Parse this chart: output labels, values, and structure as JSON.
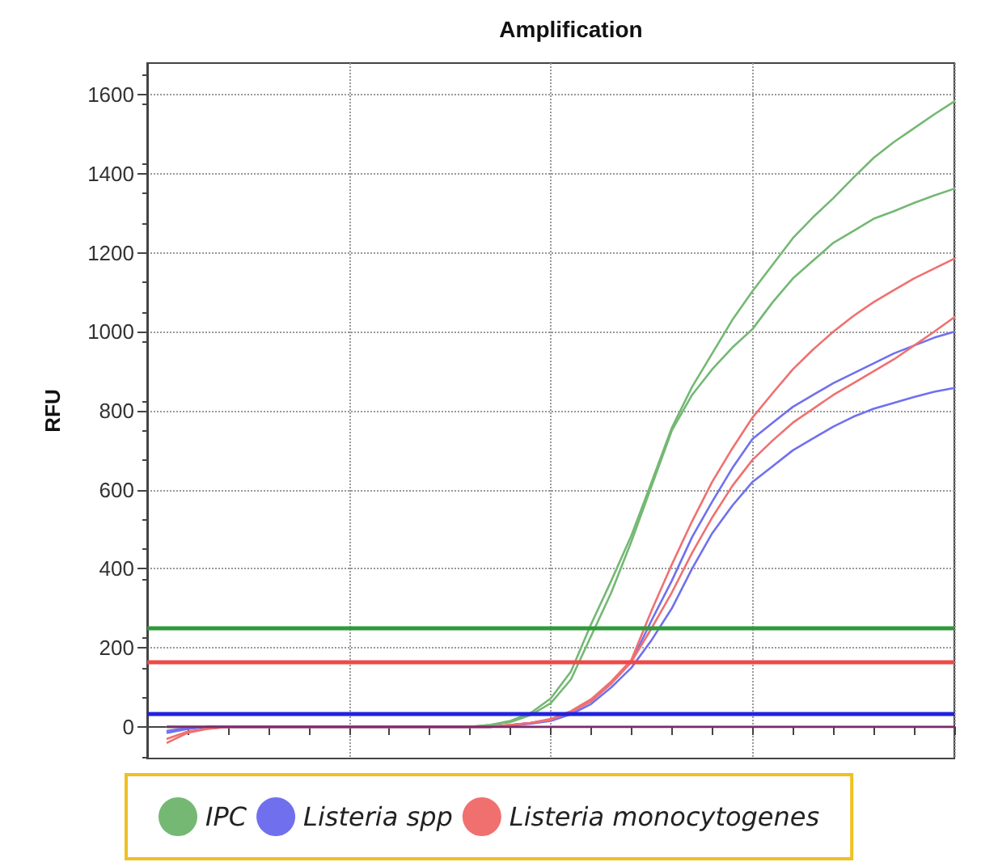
{
  "chart_data": {
    "type": "line",
    "title": "Amplification",
    "ylabel": "RFU",
    "categories": [
      null,
      null,
      null,
      null,
      null,
      null,
      null,
      null,
      null,
      null,
      null,
      null,
      null,
      null,
      null,
      null,
      null,
      null,
      null,
      null,
      null,
      null,
      null,
      null,
      null,
      null,
      null,
      null,
      null,
      null,
      null,
      null,
      null,
      null,
      null,
      null,
      null,
      null,
      null,
      null,
      null
    ],
    "series": [
      {
        "name": "IPC",
        "color": "#74b874",
        "values": [
          null,
          0,
          0,
          0,
          0,
          0,
          0,
          0,
          0,
          0,
          0,
          0,
          0,
          0,
          0,
          0,
          0,
          5,
          15,
          35,
          72,
          140,
          260,
          370,
          485,
          620,
          757,
          860,
          945,
          1030,
          1103,
          1170,
          1237,
          1290,
          1338,
          1390,
          1440,
          1480,
          1515,
          1550,
          1583
        ]
      },
      {
        "color": "#74b874",
        "values": [
          null,
          0,
          0,
          0,
          0,
          0,
          0,
          0,
          0,
          0,
          0,
          0,
          0,
          0,
          0,
          0,
          0,
          5,
          12,
          30,
          60,
          120,
          230,
          340,
          470,
          610,
          750,
          840,
          905,
          960,
          1007,
          1075,
          1135,
          1180,
          1225,
          1255,
          1286,
          1305,
          1326,
          1345,
          1362
        ]
      },
      {
        "name": "Listeria spp",
        "color": "#7070ee",
        "values": [
          null,
          -15,
          -5,
          0,
          0,
          0,
          0,
          0,
          0,
          0,
          0,
          0,
          0,
          0,
          0,
          0,
          0,
          0,
          5,
          10,
          18,
          38,
          65,
          110,
          165,
          270,
          370,
          480,
          570,
          655,
          729,
          770,
          810,
          840,
          870,
          895,
          920,
          945,
          965,
          985,
          1000
        ]
      },
      {
        "color": "#7070ee",
        "values": [
          null,
          -10,
          -3,
          0,
          0,
          0,
          0,
          0,
          0,
          0,
          0,
          0,
          0,
          0,
          0,
          0,
          0,
          0,
          3,
          8,
          15,
          32,
          58,
          100,
          150,
          220,
          300,
          400,
          490,
          560,
          620,
          660,
          700,
          730,
          760,
          785,
          805,
          820,
          835,
          848,
          858
        ]
      },
      {
        "name": "Listeria monocytogenes",
        "color": "#f07070",
        "values": [
          null,
          -40,
          -15,
          -5,
          0,
          0,
          0,
          0,
          0,
          0,
          0,
          0,
          0,
          0,
          0,
          0,
          0,
          0,
          5,
          10,
          20,
          40,
          70,
          115,
          170,
          295,
          411,
          520,
          620,
          705,
          783,
          845,
          905,
          955,
          1000,
          1040,
          1075,
          1105,
          1135,
          1160,
          1185
        ]
      },
      {
        "color": "#f07070",
        "values": [
          null,
          -30,
          -12,
          -4,
          0,
          0,
          0,
          0,
          0,
          0,
          0,
          0,
          0,
          0,
          0,
          0,
          0,
          0,
          5,
          10,
          18,
          38,
          65,
          110,
          165,
          250,
          340,
          440,
          530,
          610,
          676,
          725,
          770,
          805,
          840,
          870,
          900,
          930,
          965,
          1000,
          1037
        ]
      },
      {
        "color": "#7a2a6a",
        "values": [
          null,
          0,
          0,
          0,
          0,
          0,
          0,
          0,
          0,
          0,
          0,
          0,
          0,
          0,
          0,
          0,
          0,
          0,
          0,
          0,
          0,
          0,
          0,
          0,
          0,
          0,
          0,
          0,
          0,
          0,
          0,
          0,
          0,
          0,
          0,
          0,
          0,
          0,
          0,
          0,
          0
        ]
      }
    ],
    "ref_lines": [
      {
        "axis": "y",
        "value": 250,
        "color": "#2e9a3a"
      },
      {
        "axis": "y",
        "value": 165,
        "color": "#f04848"
      },
      {
        "axis": "y",
        "value": 35,
        "color": "#2222dd"
      }
    ],
    "ylim": [
      -80,
      1680
    ],
    "yticks": [
      0,
      200,
      400,
      600,
      800,
      1000,
      1200,
      1400,
      1600
    ],
    "grid": true,
    "legend": "bottom",
    "marker": "none",
    "line_style": "solid"
  }
}
